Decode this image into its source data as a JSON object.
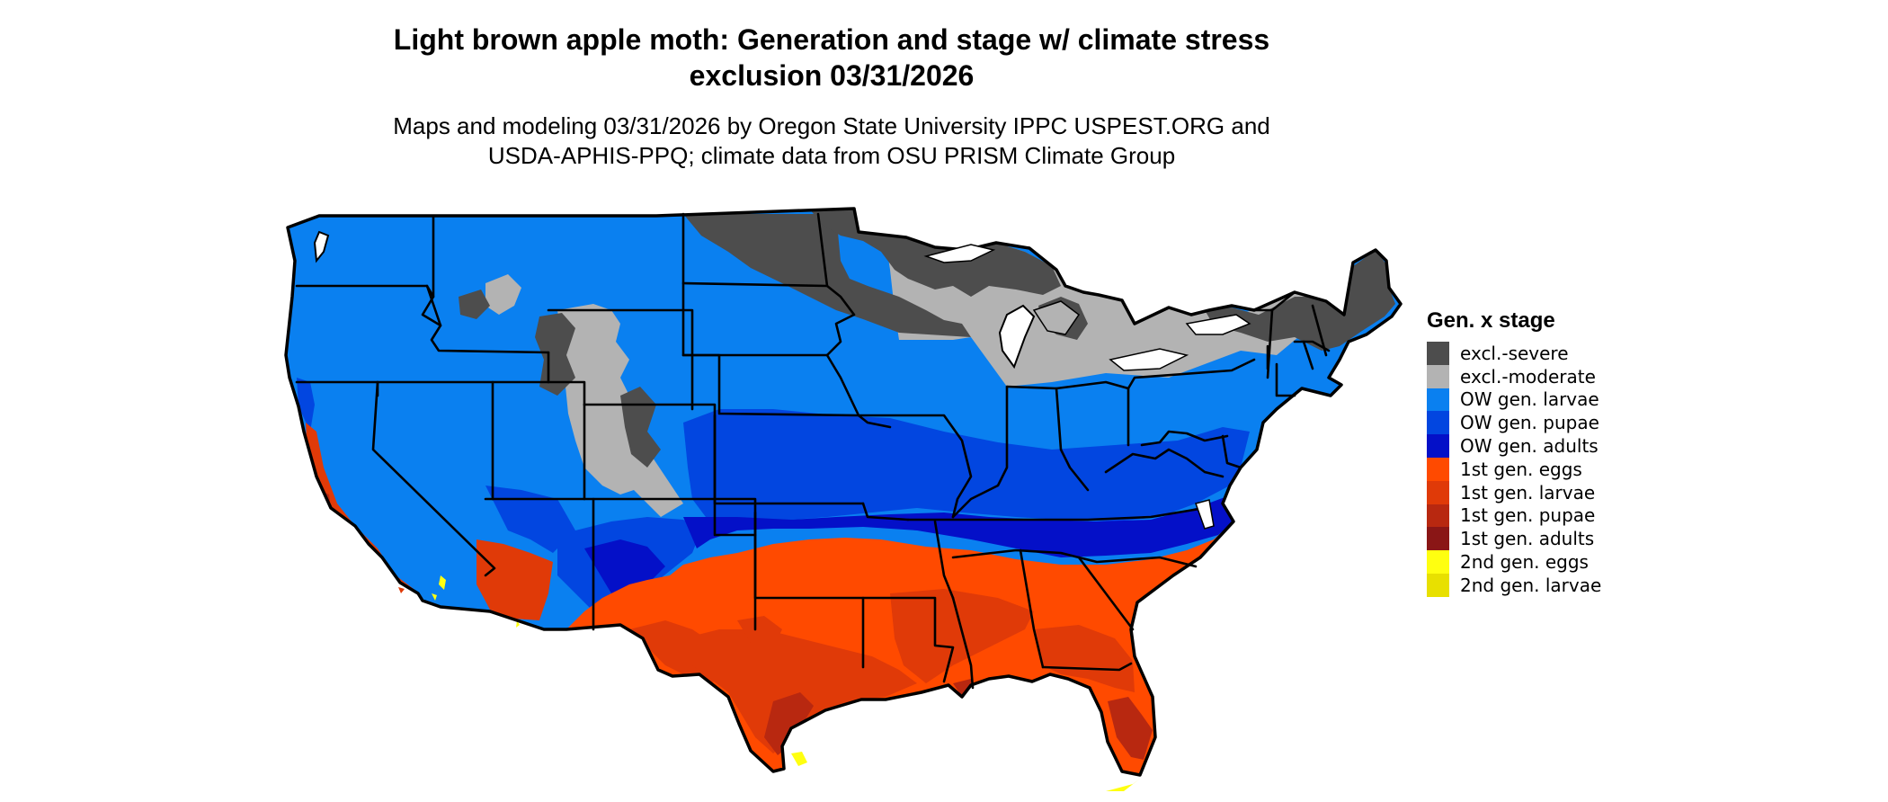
{
  "title_lines": [
    "Light brown apple moth: Generation and stage w/ climate stress",
    "exclusion 03/31/2026"
  ],
  "subtitle_lines": [
    "Maps and modeling 03/31/2026 by Oregon State University IPPC USPEST.ORG and",
    "USDA-APHIS-PPQ; climate data from OSU PRISM Climate Group"
  ],
  "legend": {
    "title": "Gen. x stage",
    "items": [
      {
        "label": "excl.-severe",
        "color": "#4d4d4d"
      },
      {
        "label": "excl.-moderate",
        "color": "#b3b3b3"
      },
      {
        "label": "OW gen. larvae",
        "color": "#0a80f0"
      },
      {
        "label": "OW gen. pupae",
        "color": "#0246e0"
      },
      {
        "label": "OW gen. adults",
        "color": "#0410c8"
      },
      {
        "label": "1st gen. eggs",
        "color": "#ff4a00"
      },
      {
        "label": "1st gen. larvae",
        "color": "#e03a08"
      },
      {
        "label": "1st gen. pupae",
        "color": "#b82810"
      },
      {
        "label": "1st gen. adults",
        "color": "#8a1616"
      },
      {
        "label": "2nd gen. eggs",
        "color": "#ffff10"
      },
      {
        "label": "2nd gen. larvae",
        "color": "#e8e000"
      }
    ]
  }
}
